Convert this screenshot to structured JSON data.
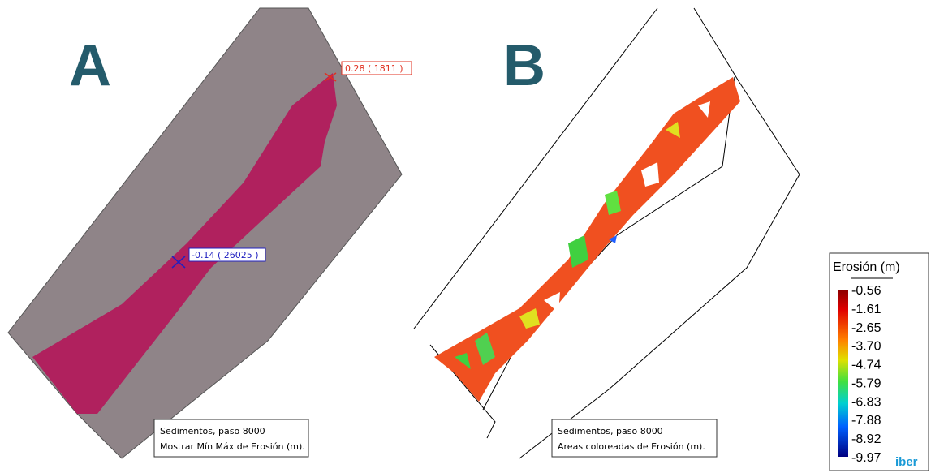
{
  "panels": [
    {
      "label": "A",
      "annotations": [
        {
          "text": "0.28  ( 1811 )"
        },
        {
          "text": "-0.14  ( 26025 )"
        }
      ],
      "info": [
        "Sedimentos, paso 8000",
        "Mostrar Mín Máx de Erosión (m)."
      ]
    },
    {
      "label": "B",
      "info": [
        "Sedimentos, paso 8000",
        "Areas coloreadas de Erosión (m)."
      ]
    }
  ],
  "legend": {
    "title": "Erosión (m)",
    "labels": [
      "-0.56",
      "-1.61",
      "-2.65",
      "-3.70",
      "-4.74",
      "-5.79",
      "-6.83",
      "-7.88",
      "-8.92",
      "-9.97"
    ]
  },
  "logo": "iber"
}
